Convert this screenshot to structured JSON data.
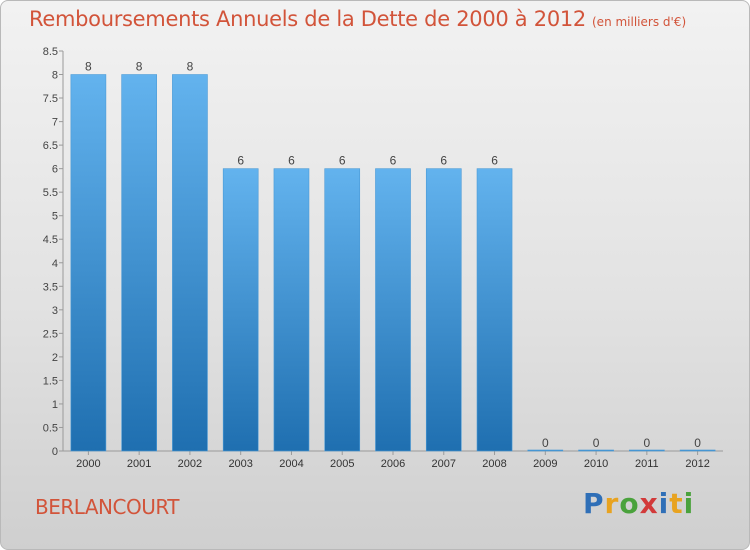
{
  "title": "Remboursements Annuels de la Dette de 2000 à 2012",
  "subtitle": "(en milliers d'€)",
  "place": "BERLANCOURT",
  "logo": {
    "letters": [
      "P",
      "r",
      "o",
      "x",
      "i",
      "t",
      "i"
    ],
    "colors": [
      "#2f6fb7",
      "#e8a320",
      "#4aa23c",
      "#d23a3a",
      "#2f6fb7",
      "#e8a320",
      "#4aa23c"
    ]
  },
  "colors": {
    "bar_light": "#63b3ee",
    "bar_dark": "#1f6fb0",
    "title": "#d2543a",
    "grid": "#9a9a9a"
  },
  "chart_data": {
    "type": "bar",
    "categories": [
      "2000",
      "2001",
      "2002",
      "2003",
      "2004",
      "2005",
      "2006",
      "2007",
      "2008",
      "2009",
      "2010",
      "2011",
      "2012"
    ],
    "values": [
      8,
      8,
      8,
      6,
      6,
      6,
      6,
      6,
      6,
      0,
      0,
      0,
      0
    ],
    "data_labels": [
      "8",
      "8",
      "8",
      "6",
      "6",
      "6",
      "6",
      "6",
      "6",
      "0",
      "0",
      "0",
      "0"
    ],
    "ylim": [
      0,
      8.5
    ],
    "yticks": [
      0,
      0.5,
      1,
      1.5,
      2,
      2.5,
      3,
      3.5,
      4,
      4.5,
      5,
      5.5,
      6,
      6.5,
      7,
      7.5,
      8,
      8.5
    ],
    "ytick_labels": [
      "0",
      "0.5",
      "1",
      "1.5",
      "2",
      "2.5",
      "3",
      "3.5",
      "4",
      "4.5",
      "5",
      "5.5",
      "6",
      "6.5",
      "7",
      "7.5",
      "8",
      "8.5"
    ],
    "grid": false,
    "xlabel": "",
    "ylabel": ""
  }
}
